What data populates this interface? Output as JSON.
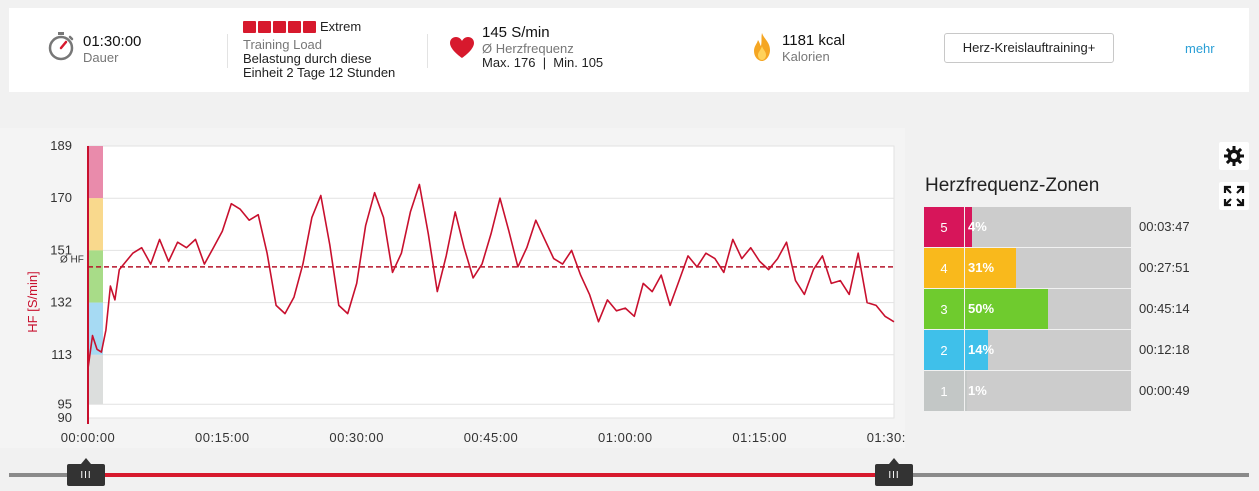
{
  "summary": {
    "duration": {
      "value": "01:30:00",
      "label": "Dauer",
      "icon": "stopwatch-icon"
    },
    "training_load": {
      "level_squares": 5,
      "level_label": "Extrem",
      "title": "Training Load",
      "line1": "Belastung durch diese",
      "line2": "Einheit 2 Tage 12 Stunden",
      "square_color": "#d7192d"
    },
    "heart_rate": {
      "value": "145 S/min",
      "label": "Ø Herzfrequenz",
      "minmax": "Max. 176  |  Min. 105",
      "icon": "heart-icon",
      "icon_color": "#d7192d"
    },
    "calories": {
      "value": "1181 kcal",
      "label": "Kalorien",
      "icon": "flame-icon",
      "icon_color": "#f5a623"
    },
    "sport_button": "Herz-Kreislauftraining+",
    "more_link": "mehr"
  },
  "side_buttons": {
    "settings_icon": "gear-icon",
    "fullscreen_icon": "expand-icon"
  },
  "zones_panel": {
    "title": "Herzfrequenz-Zonen",
    "zones": [
      {
        "num": "5",
        "pct_label": "4%",
        "pct": 4,
        "time": "00:03:47",
        "color": "#d7155a"
      },
      {
        "num": "4",
        "pct_label": "31%",
        "pct": 31,
        "time": "00:27:51",
        "color": "#f9b91c"
      },
      {
        "num": "3",
        "pct_label": "50%",
        "pct": 50,
        "time": "00:45:14",
        "color": "#6fcb2e"
      },
      {
        "num": "2",
        "pct_label": "14%",
        "pct": 14,
        "time": "00:12:18",
        "color": "#3fc0ea"
      },
      {
        "num": "1",
        "pct_label": "1%",
        "pct": 1,
        "time": "00:00:49",
        "color": "#c3c7c6"
      }
    ]
  },
  "slider": {
    "handle_left_label": "III",
    "handle_right_label": "III",
    "start": 0,
    "end": 1
  },
  "chart_data": {
    "type": "line",
    "ylabel": "HF [S/min]",
    "ylim": [
      90,
      189
    ],
    "yticks": [
      189,
      170,
      151,
      132,
      113,
      95,
      90
    ],
    "xlim": [
      0,
      90
    ],
    "x_unit": "minutes",
    "xticks": [
      0,
      15,
      30,
      45,
      60,
      75,
      90
    ],
    "xtick_labels": [
      "00:00:00",
      "00:15:00",
      "00:30:00",
      "00:45:00",
      "01:00:00",
      "01:15:00",
      "01:30:00"
    ],
    "grid": true,
    "avg_line": {
      "value": 145,
      "label": "Ø HF",
      "color": "#b5142a"
    },
    "line_color": "#c8102e",
    "zone_bands": [
      {
        "from": 170,
        "to": 189,
        "color": "#e98bab"
      },
      {
        "from": 151,
        "to": 170,
        "color": "#f9d98d"
      },
      {
        "from": 132,
        "to": 151,
        "color": "#a8dc88"
      },
      {
        "from": 113,
        "to": 132,
        "color": "#a6daf3"
      },
      {
        "from": 95,
        "to": 113,
        "color": "#dcdedd"
      }
    ],
    "series": [
      {
        "x": [
          0,
          0.5,
          1,
          1.5,
          2,
          2.5,
          3,
          3.5,
          4,
          5,
          6,
          7,
          8,
          9,
          10,
          11,
          12,
          13,
          14,
          15,
          16,
          17,
          18,
          19,
          20,
          21,
          22,
          23,
          24,
          25,
          26,
          27,
          28,
          29,
          30,
          31,
          32,
          33,
          34,
          35,
          36,
          37,
          38,
          39,
          40,
          41,
          42,
          43,
          44,
          45,
          46,
          47,
          48,
          49,
          50,
          51,
          52,
          53,
          54,
          55,
          56,
          57,
          58,
          59,
          60,
          61,
          62,
          63,
          64,
          65,
          66,
          67,
          68,
          69,
          70,
          71,
          72,
          73,
          74,
          75,
          76,
          77,
          78,
          79,
          80,
          81,
          82,
          83,
          84,
          85,
          86,
          87,
          88,
          89,
          90
        ],
        "values": [
          108,
          120,
          115,
          114,
          122,
          138,
          133,
          144,
          146,
          150,
          152,
          146,
          155,
          147,
          154,
          152,
          155,
          146,
          152,
          158,
          168,
          166,
          162,
          164,
          150,
          131,
          128,
          134,
          146,
          163,
          171,
          153,
          131,
          128,
          139,
          160,
          172,
          163,
          143,
          150,
          165,
          175,
          157,
          136,
          149,
          165,
          152,
          141,
          146,
          157,
          170,
          158,
          145,
          152,
          162,
          155,
          148,
          146,
          151,
          142,
          135,
          125,
          133,
          129,
          130,
          127,
          139,
          136,
          142,
          131,
          140,
          149,
          145,
          150,
          148,
          143,
          155,
          148,
          152,
          147,
          144,
          148,
          154,
          140,
          135,
          144,
          149,
          139,
          140,
          135,
          150,
          132,
          131,
          127,
          125
        ]
      }
    ]
  }
}
